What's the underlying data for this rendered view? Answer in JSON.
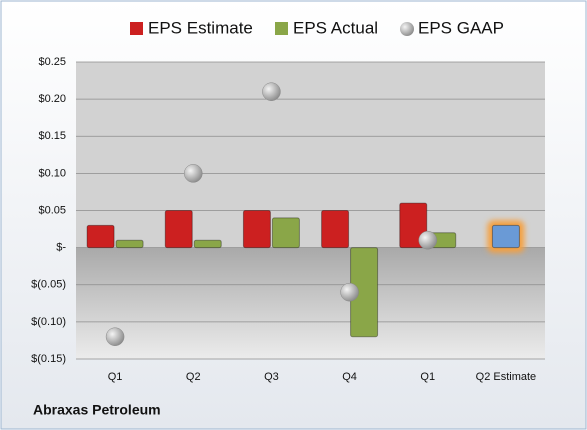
{
  "chart_data": {
    "type": "bar",
    "categories": [
      "Q1",
      "Q2",
      "Q3",
      "Q4",
      "Q1",
      "Q2 Estimate"
    ],
    "series": [
      {
        "name": "EPS Estimate",
        "color": "#cc2020",
        "values": [
          0.03,
          0.05,
          0.05,
          0.05,
          0.06,
          0.03
        ]
      },
      {
        "name": "EPS Actual",
        "color": "#8aa648",
        "values": [
          0.01,
          0.01,
          0.04,
          -0.12,
          0.02,
          null
        ]
      },
      {
        "name": "EPS GAAP",
        "color": "#a8a8a8",
        "marker": "circle",
        "values": [
          -0.12,
          0.1,
          0.21,
          -0.06,
          0.01,
          null
        ]
      }
    ],
    "highlight": {
      "index": 5,
      "color": "#6a9ad6",
      "glow": "#f5a040"
    },
    "ylim": [
      -0.15,
      0.25
    ],
    "yticks": [
      {
        "value": -0.15,
        "label": "$(0.15)"
      },
      {
        "value": -0.1,
        "label": "$(0.10)"
      },
      {
        "value": -0.05,
        "label": "$(0.05)"
      },
      {
        "value": 0,
        "label": "$-"
      },
      {
        "value": 0.05,
        "label": "$0.05"
      },
      {
        "value": 0.1,
        "label": "$0.10"
      },
      {
        "value": 0.15,
        "label": "$0.15"
      },
      {
        "value": 0.2,
        "label": "$0.20"
      },
      {
        "value": 0.25,
        "label": "$0.25"
      }
    ],
    "grid": true,
    "legend": "top",
    "source": "Abraxas Petroleum"
  }
}
